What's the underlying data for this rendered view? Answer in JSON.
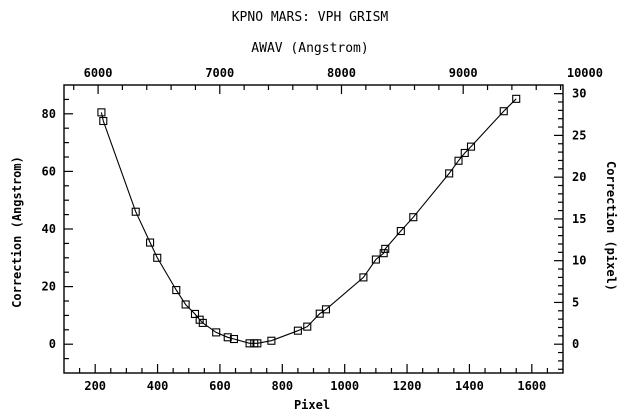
{
  "chart_data": {
    "type": "scatter",
    "title": "KPNO MARS: VPH GRISM",
    "top_axis_label": "AWAV (Angstrom)",
    "xlabel": "Pixel",
    "ylabel": "Correction (Angstrom)",
    "y2label": "Correction (pixel)",
    "xlim": [
      100,
      1700
    ],
    "ylim": [
      -10,
      90
    ],
    "x_ticks": [
      200,
      400,
      600,
      800,
      1000,
      1200,
      1400,
      1600
    ],
    "y_ticks": [
      0,
      20,
      40,
      60,
      80
    ],
    "top_ticks": [
      6000,
      7000,
      8000,
      9000,
      10000
    ],
    "right_ticks": [
      0,
      5,
      10,
      15,
      20,
      25,
      30
    ],
    "top_axis_range": [
      5720,
      9820
    ],
    "right_axis_scale": 2.9,
    "grid": false,
    "legend": "none",
    "series": [
      {
        "points": [
          [
            220,
            80.5
          ],
          [
            226,
            77.5
          ],
          [
            330,
            46
          ],
          [
            376,
            35.3
          ],
          [
            399,
            30
          ],
          [
            460,
            18.8
          ],
          [
            490,
            13.8
          ],
          [
            520,
            10.5
          ],
          [
            535,
            8.5
          ],
          [
            545,
            7.4
          ],
          [
            588,
            4.1
          ],
          [
            625,
            2.4
          ],
          [
            645,
            1.8
          ],
          [
            695,
            0.3
          ],
          [
            710,
            0.3
          ],
          [
            720,
            0.3
          ],
          [
            765,
            1.2
          ],
          [
            850,
            4.7
          ],
          [
            880,
            6.1
          ],
          [
            920,
            10.6
          ],
          [
            940,
            12.1
          ],
          [
            1060,
            23.2
          ],
          [
            1100,
            29.4
          ],
          [
            1125,
            31.6
          ],
          [
            1130,
            33.1
          ],
          [
            1180,
            39.3
          ],
          [
            1220,
            44.1
          ],
          [
            1335,
            59.3
          ],
          [
            1365,
            63.7
          ],
          [
            1385,
            66.4
          ],
          [
            1405,
            68.6
          ],
          [
            1510,
            80.9
          ],
          [
            1550,
            85.2
          ]
        ]
      }
    ]
  }
}
